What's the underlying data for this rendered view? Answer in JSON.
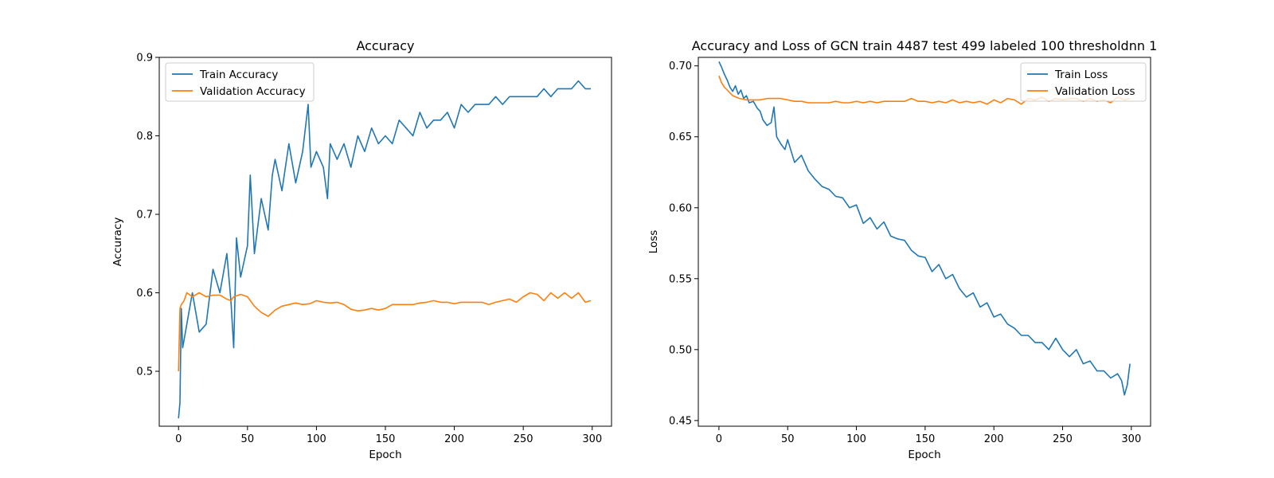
{
  "chart_data": [
    {
      "type": "line",
      "title": "Accuracy",
      "xlabel": "Epoch",
      "ylabel": "Accuracy",
      "xlim": [
        -14,
        314
      ],
      "ylim": [
        0.43,
        0.9
      ],
      "xticks": [
        0,
        50,
        100,
        150,
        200,
        250,
        300
      ],
      "yticks": [
        0.5,
        0.6,
        0.7,
        0.8,
        0.9
      ],
      "ytick_labels": [
        "0.5",
        "0.6",
        "0.7",
        "0.8",
        "0.9"
      ],
      "legend": "top-left",
      "grid": false,
      "series": [
        {
          "name": "Train Accuracy",
          "color": "#1f77b4",
          "x": [
            0,
            1,
            2,
            3,
            5,
            8,
            10,
            15,
            20,
            25,
            30,
            35,
            38,
            40,
            42,
            45,
            50,
            52,
            55,
            60,
            65,
            68,
            70,
            75,
            80,
            85,
            90,
            94,
            96,
            100,
            105,
            108,
            110,
            115,
            120,
            125,
            130,
            135,
            140,
            145,
            150,
            155,
            160,
            165,
            170,
            175,
            180,
            185,
            190,
            195,
            200,
            205,
            210,
            215,
            220,
            225,
            230,
            235,
            240,
            245,
            250,
            255,
            260,
            265,
            270,
            275,
            280,
            285,
            290,
            295,
            299
          ],
          "y": [
            0.44,
            0.46,
            0.58,
            0.53,
            0.55,
            0.58,
            0.6,
            0.55,
            0.56,
            0.63,
            0.6,
            0.65,
            0.59,
            0.53,
            0.67,
            0.62,
            0.66,
            0.75,
            0.65,
            0.72,
            0.68,
            0.75,
            0.77,
            0.73,
            0.79,
            0.74,
            0.78,
            0.84,
            0.76,
            0.78,
            0.76,
            0.72,
            0.79,
            0.77,
            0.79,
            0.76,
            0.8,
            0.78,
            0.81,
            0.79,
            0.8,
            0.79,
            0.82,
            0.81,
            0.8,
            0.83,
            0.81,
            0.82,
            0.82,
            0.83,
            0.81,
            0.84,
            0.83,
            0.84,
            0.84,
            0.84,
            0.85,
            0.84,
            0.85,
            0.85,
            0.85,
            0.85,
            0.85,
            0.86,
            0.85,
            0.86,
            0.86,
            0.86,
            0.87,
            0.86,
            0.86
          ]
        },
        {
          "name": "Validation Accuracy",
          "color": "#ff7f0e",
          "x": [
            0,
            1,
            2,
            4,
            6,
            10,
            15,
            20,
            25,
            30,
            35,
            38,
            40,
            45,
            50,
            55,
            60,
            65,
            70,
            75,
            80,
            85,
            90,
            95,
            100,
            105,
            110,
            115,
            120,
            125,
            130,
            135,
            140,
            145,
            150,
            155,
            160,
            165,
            170,
            175,
            180,
            185,
            190,
            195,
            200,
            205,
            210,
            215,
            220,
            225,
            230,
            235,
            240,
            245,
            250,
            255,
            260,
            265,
            270,
            275,
            280,
            285,
            290,
            295,
            299
          ],
          "y": [
            0.5,
            0.58,
            0.585,
            0.59,
            0.6,
            0.595,
            0.6,
            0.595,
            0.597,
            0.597,
            0.592,
            0.59,
            0.595,
            0.598,
            0.595,
            0.583,
            0.575,
            0.57,
            0.578,
            0.583,
            0.585,
            0.587,
            0.585,
            0.586,
            0.59,
            0.588,
            0.587,
            0.588,
            0.585,
            0.579,
            0.577,
            0.578,
            0.58,
            0.578,
            0.58,
            0.585,
            0.585,
            0.585,
            0.585,
            0.587,
            0.588,
            0.59,
            0.588,
            0.588,
            0.586,
            0.588,
            0.588,
            0.588,
            0.588,
            0.585,
            0.588,
            0.59,
            0.592,
            0.588,
            0.595,
            0.6,
            0.598,
            0.59,
            0.6,
            0.593,
            0.6,
            0.593,
            0.6,
            0.588,
            0.59
          ]
        }
      ]
    },
    {
      "type": "line",
      "title": "Accuracy and Loss of GCN train 4487 test 499 labeled 100 thresholdnn 1",
      "xlabel": "Epoch",
      "ylabel": "Loss",
      "xlim": [
        -15,
        314
      ],
      "ylim": [
        0.446,
        0.706
      ],
      "xticks": [
        0,
        50,
        100,
        150,
        200,
        250,
        300
      ],
      "yticks": [
        0.45,
        0.5,
        0.55,
        0.6,
        0.65,
        0.7
      ],
      "ytick_labels": [
        "0.45",
        "0.50",
        "0.55",
        "0.60",
        "0.65",
        "0.70"
      ],
      "legend": "top-right",
      "grid": false,
      "series": [
        {
          "name": "Train Loss",
          "color": "#1f77b4",
          "x": [
            0,
            2,
            4,
            6,
            8,
            10,
            12,
            14,
            16,
            18,
            20,
            22,
            25,
            28,
            30,
            32,
            35,
            38,
            40,
            42,
            45,
            48,
            50,
            55,
            60,
            65,
            70,
            75,
            80,
            85,
            90,
            95,
            100,
            105,
            110,
            115,
            120,
            125,
            130,
            135,
            140,
            145,
            150,
            155,
            160,
            165,
            170,
            175,
            180,
            185,
            190,
            195,
            200,
            205,
            210,
            215,
            220,
            225,
            230,
            235,
            240,
            245,
            250,
            255,
            260,
            265,
            270,
            275,
            280,
            285,
            290,
            293,
            295,
            297,
            299
          ],
          "y": [
            0.703,
            0.699,
            0.694,
            0.69,
            0.685,
            0.682,
            0.686,
            0.68,
            0.683,
            0.677,
            0.679,
            0.674,
            0.675,
            0.67,
            0.668,
            0.662,
            0.658,
            0.66,
            0.671,
            0.65,
            0.645,
            0.641,
            0.648,
            0.632,
            0.637,
            0.626,
            0.62,
            0.615,
            0.613,
            0.608,
            0.607,
            0.6,
            0.602,
            0.589,
            0.593,
            0.585,
            0.59,
            0.58,
            0.578,
            0.577,
            0.57,
            0.566,
            0.565,
            0.555,
            0.56,
            0.55,
            0.553,
            0.543,
            0.537,
            0.54,
            0.53,
            0.533,
            0.523,
            0.525,
            0.518,
            0.515,
            0.51,
            0.51,
            0.505,
            0.505,
            0.5,
            0.508,
            0.5,
            0.495,
            0.5,
            0.49,
            0.492,
            0.485,
            0.485,
            0.48,
            0.483,
            0.478,
            0.468,
            0.475,
            0.49
          ]
        },
        {
          "name": "Validation Loss",
          "color": "#ff7f0e",
          "x": [
            0,
            2,
            4,
            6,
            8,
            10,
            15,
            20,
            25,
            30,
            35,
            40,
            45,
            50,
            55,
            60,
            65,
            70,
            75,
            80,
            85,
            90,
            95,
            100,
            105,
            110,
            115,
            120,
            125,
            130,
            135,
            140,
            145,
            150,
            155,
            160,
            165,
            170,
            175,
            180,
            185,
            190,
            195,
            200,
            205,
            210,
            215,
            220,
            225,
            230,
            235,
            240,
            245,
            250,
            255,
            260,
            265,
            270,
            275,
            280,
            285,
            290,
            295,
            299
          ],
          "y": [
            0.693,
            0.688,
            0.685,
            0.683,
            0.681,
            0.679,
            0.677,
            0.676,
            0.676,
            0.676,
            0.677,
            0.677,
            0.677,
            0.676,
            0.675,
            0.675,
            0.674,
            0.674,
            0.674,
            0.674,
            0.675,
            0.674,
            0.674,
            0.675,
            0.674,
            0.675,
            0.674,
            0.675,
            0.675,
            0.675,
            0.675,
            0.677,
            0.675,
            0.675,
            0.674,
            0.675,
            0.674,
            0.676,
            0.674,
            0.675,
            0.674,
            0.675,
            0.673,
            0.676,
            0.674,
            0.677,
            0.676,
            0.673,
            0.677,
            0.676,
            0.678,
            0.675,
            0.677,
            0.676,
            0.677,
            0.677,
            0.675,
            0.677,
            0.675,
            0.676,
            0.674,
            0.678,
            0.676,
            0.677
          ]
        }
      ]
    }
  ]
}
